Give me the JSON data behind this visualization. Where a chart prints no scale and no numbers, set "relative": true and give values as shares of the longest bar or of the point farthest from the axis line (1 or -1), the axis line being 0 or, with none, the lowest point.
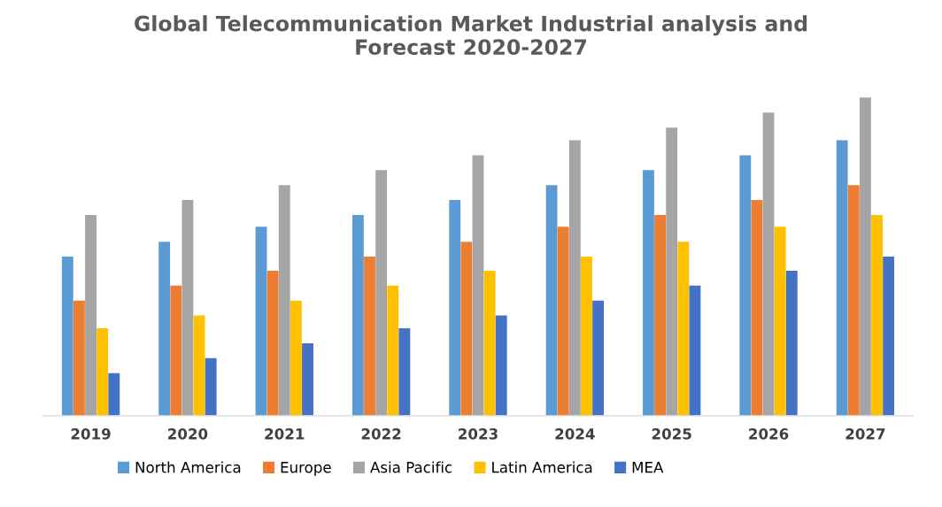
{
  "chart_data": {
    "type": "bar",
    "title": "Global Telecommunication Market Industrial analysis and\nForecast 2020-2027",
    "relative": true,
    "categories": [
      "2019",
      "2020",
      "2021",
      "2022",
      "2023",
      "2024",
      "2025",
      "2026",
      "2027"
    ],
    "series": [
      {
        "name": "North America",
        "color": "#5b9bd5",
        "values": [
          0.5,
          0.547,
          0.594,
          0.631,
          0.678,
          0.725,
          0.772,
          0.819,
          0.866
        ]
      },
      {
        "name": "Europe",
        "color": "#ed7d31",
        "values": [
          0.362,
          0.409,
          0.456,
          0.5,
          0.547,
          0.594,
          0.631,
          0.678,
          0.725
        ]
      },
      {
        "name": "Asia Pacific",
        "color": "#a5a5a5",
        "values": [
          0.631,
          0.678,
          0.725,
          0.772,
          0.819,
          0.866,
          0.906,
          0.953,
          1
        ]
      },
      {
        "name": "Latin America",
        "color": "#ffc000",
        "values": [
          0.275,
          0.315,
          0.362,
          0.409,
          0.456,
          0.5,
          0.547,
          0.594,
          0.631
        ]
      },
      {
        "name": "MEA",
        "color": "#4472c4",
        "values": [
          0.134,
          0.181,
          0.228,
          0.275,
          0.315,
          0.362,
          0.409,
          0.456,
          0.5
        ]
      }
    ],
    "legend": "bottom",
    "grid": false
  }
}
